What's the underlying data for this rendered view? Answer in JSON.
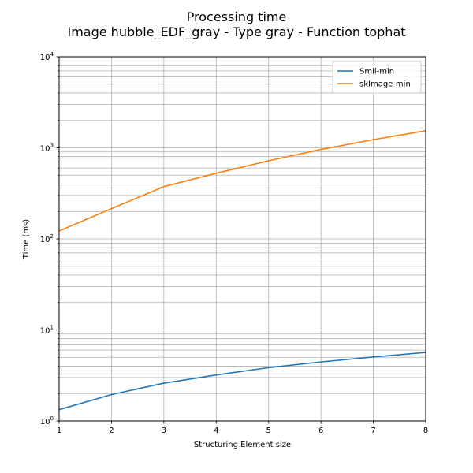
{
  "chart_data": {
    "type": "line",
    "title": "Processing time",
    "subtitle": "Image hubble_EDF_gray - Type gray - Function tophat",
    "xlabel": "Structuring Element size",
    "ylabel": "Time (ms)",
    "x": [
      1,
      2,
      3,
      4,
      5,
      6,
      7,
      8
    ],
    "xlim": [
      1,
      8
    ],
    "ylim": [
      1,
      10000
    ],
    "yscale": "log",
    "grid": true,
    "legend_position": "top-right",
    "xticks": [
      "1",
      "2",
      "3",
      "4",
      "5",
      "6",
      "7",
      "8"
    ],
    "yticks": [
      {
        "value": 1,
        "base": "10",
        "exp": "0"
      },
      {
        "value": 10,
        "base": "10",
        "exp": "1"
      },
      {
        "value": 100,
        "base": "10",
        "exp": "2"
      },
      {
        "value": 1000,
        "base": "10",
        "exp": "3"
      },
      {
        "value": 10000,
        "base": "10",
        "exp": "4"
      }
    ],
    "series": [
      {
        "name": "Smil-min",
        "color": "#1f77b4",
        "values": [
          1.33,
          1.95,
          2.6,
          3.2,
          3.85,
          4.45,
          5.05,
          5.65
        ]
      },
      {
        "name": "skImage-min",
        "color": "#ff7f0e",
        "values": [
          122,
          215,
          375,
          525,
          720,
          960,
          1230,
          1540
        ]
      }
    ]
  }
}
